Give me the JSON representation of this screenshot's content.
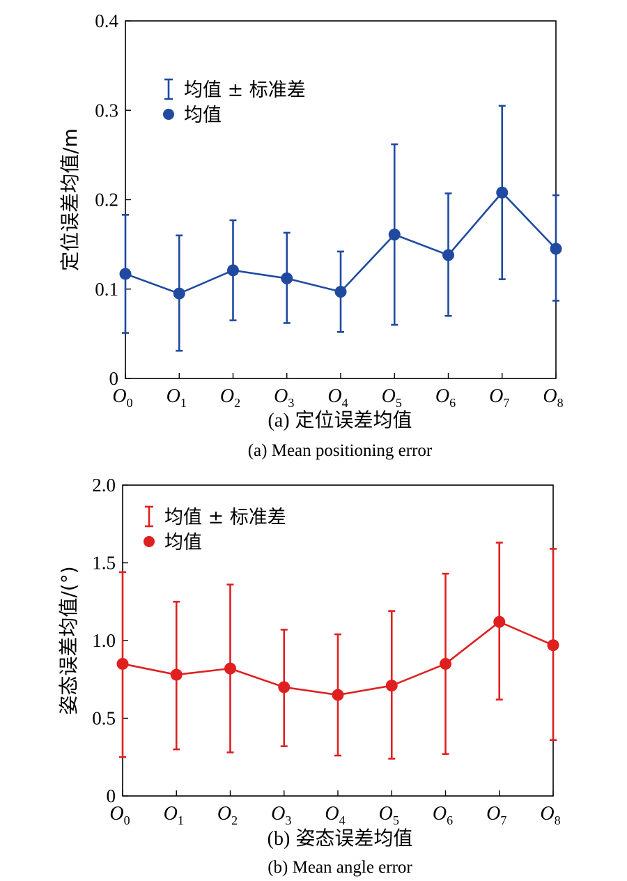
{
  "chart_data": [
    {
      "type": "line",
      "subplot_label": "(a)",
      "caption_cn": "定位误差均值",
      "caption_en": "(a) Mean positioning error",
      "ylabel": "定位误差均值/m",
      "ylim": [
        0,
        0.4
      ],
      "yticks": [
        "0",
        "0.1",
        "0.2",
        "0.3",
        "0.4"
      ],
      "ytick_values": [
        0,
        0.1,
        0.2,
        0.3,
        0.4
      ],
      "categories": [
        "0",
        "1",
        "2",
        "3",
        "4",
        "5",
        "6",
        "7",
        "8"
      ],
      "category_prefix": "O",
      "legend": {
        "errorbar_label": "均值 ± 标准差",
        "mean_label": "均值",
        "placement": "top-left"
      },
      "color": "#1f4aa0",
      "series": [
        {
          "name": "均值",
          "values": [
            0.117,
            0.095,
            0.121,
            0.112,
            0.097,
            0.161,
            0.138,
            0.208,
            0.145
          ],
          "lower": [
            0.051,
            0.031,
            0.065,
            0.062,
            0.052,
            0.06,
            0.07,
            0.111,
            0.087
          ],
          "upper": [
            0.183,
            0.16,
            0.177,
            0.163,
            0.142,
            0.262,
            0.207,
            0.305,
            0.205
          ]
        }
      ]
    },
    {
      "type": "line",
      "subplot_label": "(b)",
      "caption_cn": "姿态误差均值",
      "caption_en": "(b) Mean angle error",
      "ylabel": "姿态误差均值/(°)",
      "ylim": [
        0,
        2.0
      ],
      "yticks": [
        "0",
        "0.5",
        "1.0",
        "1.5",
        "2.0"
      ],
      "ytick_values": [
        0,
        0.5,
        1.0,
        1.5,
        2.0
      ],
      "categories": [
        "0",
        "1",
        "2",
        "3",
        "4",
        "5",
        "6",
        "7",
        "8"
      ],
      "category_prefix": "O",
      "legend": {
        "errorbar_label": "均值 ± 标准差",
        "mean_label": "均值",
        "placement": "top-left"
      },
      "color": "#e02020",
      "series": [
        {
          "name": "均值",
          "values": [
            0.85,
            0.78,
            0.82,
            0.7,
            0.65,
            0.71,
            0.85,
            1.12,
            0.97
          ],
          "lower": [
            0.25,
            0.3,
            0.28,
            0.32,
            0.26,
            0.24,
            0.27,
            0.62,
            0.36
          ],
          "upper": [
            1.44,
            1.25,
            1.36,
            1.07,
            1.04,
            1.19,
            1.43,
            1.63,
            1.59
          ]
        }
      ]
    }
  ]
}
